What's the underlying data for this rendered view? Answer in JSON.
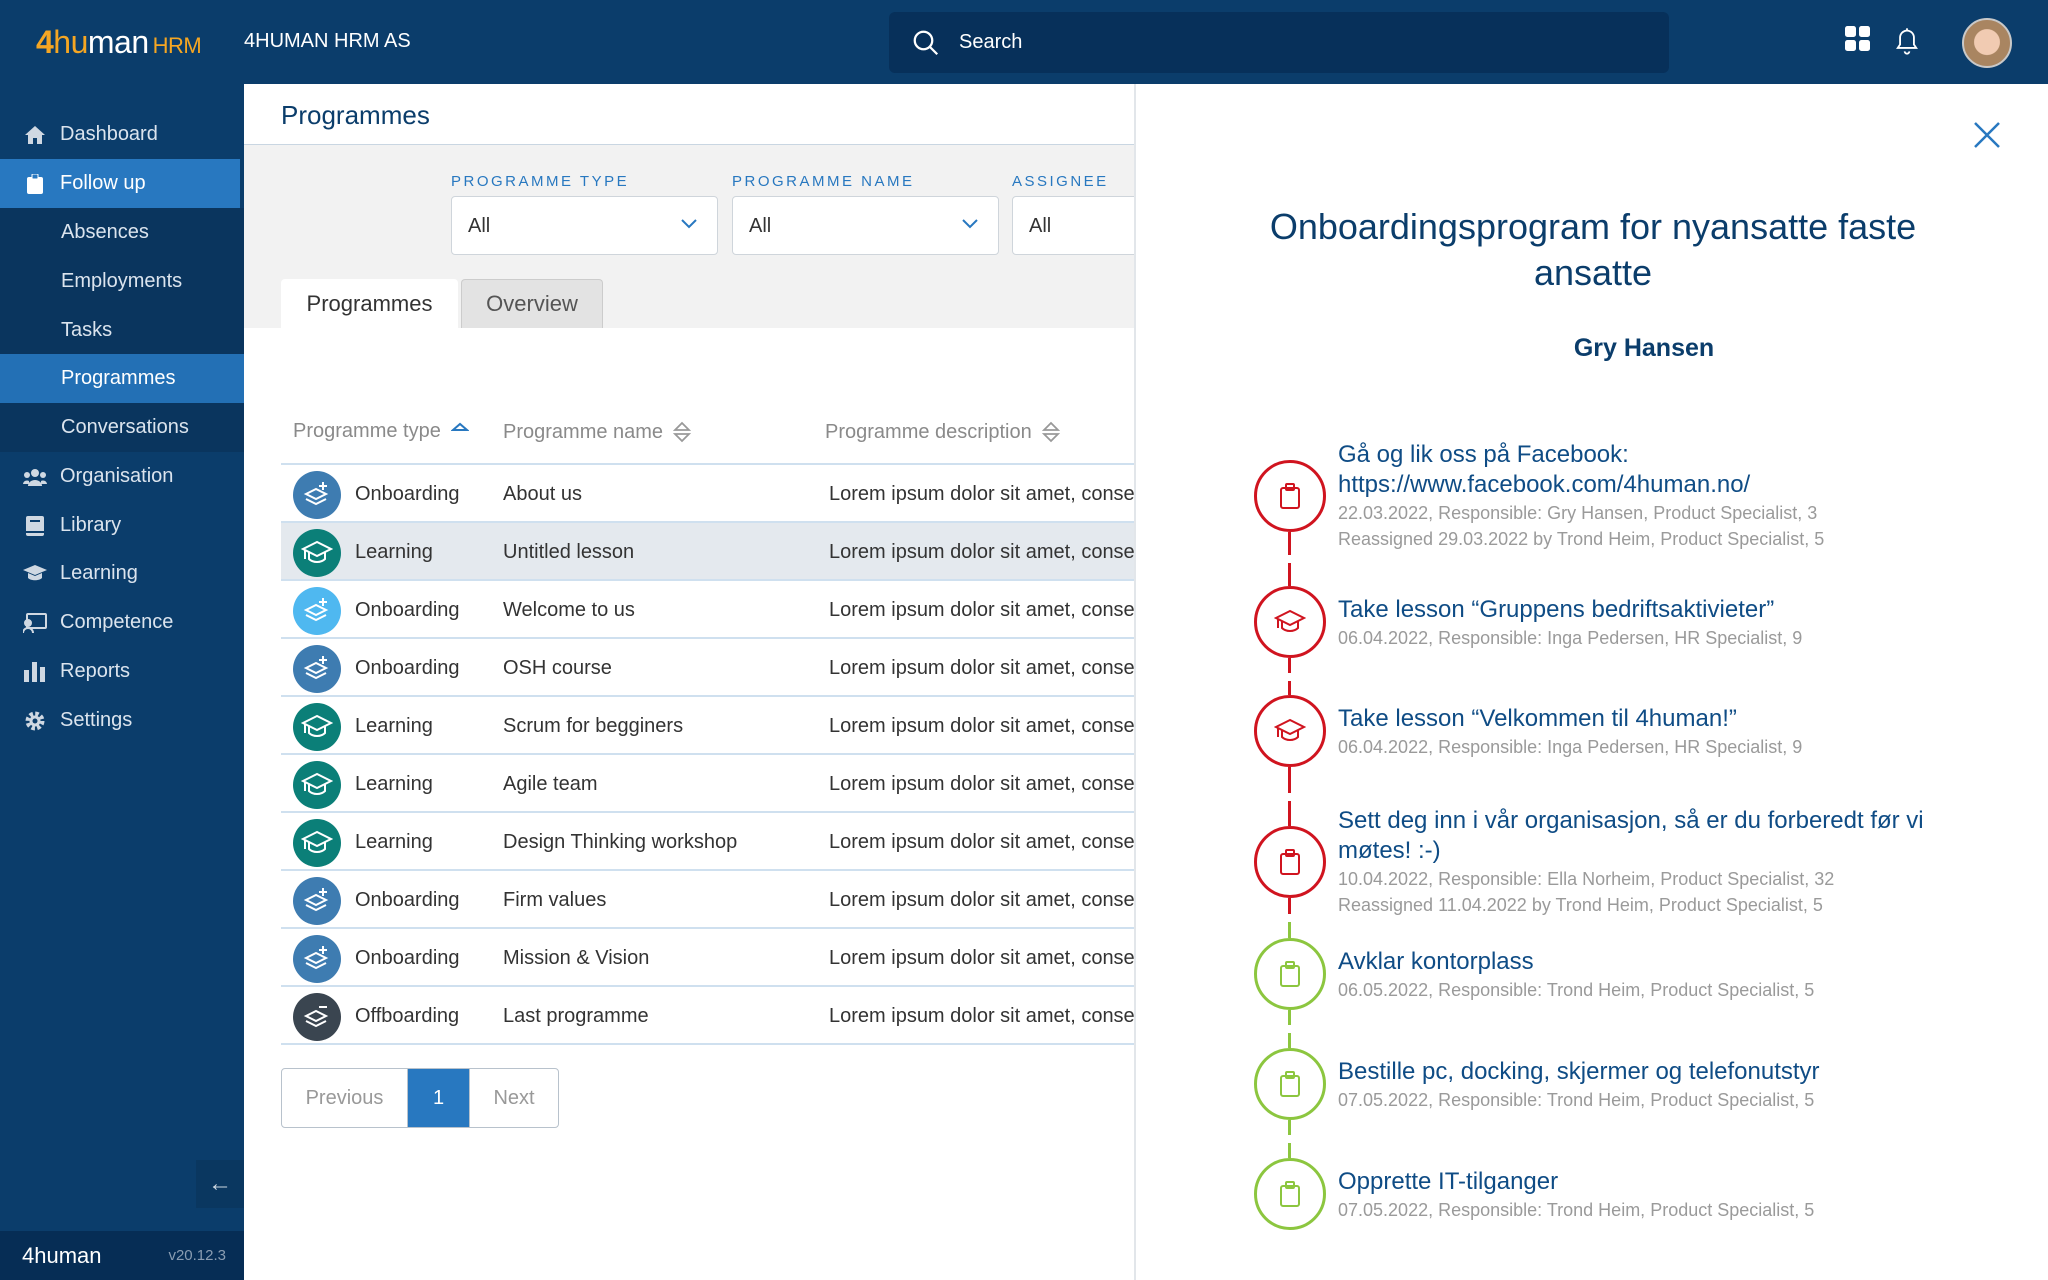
{
  "header": {
    "logo": "4human",
    "logo_suffix": "HRM",
    "company": "4HUMAN HRM AS",
    "search_placeholder": "Search"
  },
  "sidebar": {
    "items": [
      {
        "label": "Dashboard",
        "icon": "home-icon"
      },
      {
        "label": "Follow up",
        "icon": "clipboard-icon"
      },
      {
        "label": "Absences"
      },
      {
        "label": "Employments"
      },
      {
        "label": "Tasks"
      },
      {
        "label": "Programmes"
      },
      {
        "label": "Conversations"
      },
      {
        "label": "Organisation",
        "icon": "users-icon"
      },
      {
        "label": "Library",
        "icon": "book-icon"
      },
      {
        "label": "Learning",
        "icon": "graduation-cap-icon"
      },
      {
        "label": "Competence",
        "icon": "competence-icon"
      },
      {
        "label": "Reports",
        "icon": "bar-chart-icon"
      },
      {
        "label": "Settings",
        "icon": "gear-icon"
      }
    ],
    "footer_logo": "4human",
    "version": "v20.12.3"
  },
  "main": {
    "title": "Programmes",
    "filters": [
      {
        "label": "PROGRAMME TYPE",
        "value": "All"
      },
      {
        "label": "PROGRAMME NAME",
        "value": "All"
      },
      {
        "label": "ASSIGNEE",
        "value": "All"
      }
    ],
    "tabs": [
      "Programmes",
      "Overview"
    ],
    "columns": [
      "Programme type",
      "Programme name",
      "Programme description"
    ],
    "rows": [
      {
        "type": "Onboarding",
        "name": "About us",
        "desc": "Lorem ipsum dolor sit amet, consectetur",
        "color": "#3e7cb1"
      },
      {
        "type": "Learning",
        "name": "Untitled lesson",
        "desc": "Lorem ipsum dolor sit amet, consectetur",
        "color": "#0b7f78"
      },
      {
        "type": "Onboarding",
        "name": "Welcome to us",
        "desc": "Lorem ipsum dolor sit amet, consectetur",
        "color": "#4fb8f0"
      },
      {
        "type": "Onboarding",
        "name": "OSH course",
        "desc": "Lorem ipsum dolor sit amet, consectetur",
        "color": "#3e7cb1"
      },
      {
        "type": "Learning",
        "name": "Scrum for begginers",
        "desc": "Lorem ipsum dolor sit amet, consectetur",
        "color": "#0b7f78"
      },
      {
        "type": "Learning",
        "name": "Agile team",
        "desc": "Lorem ipsum dolor sit amet, consectetur",
        "color": "#0b7f78"
      },
      {
        "type": "Learning",
        "name": "Design Thinking workshop",
        "desc": "Lorem ipsum dolor sit amet, consectetur",
        "color": "#0b7f78"
      },
      {
        "type": "Onboarding",
        "name": "Firm values",
        "desc": "Lorem ipsum dolor sit amet, consectetur",
        "color": "#3e7cb1"
      },
      {
        "type": "Onboarding",
        "name": "Mission & Vision",
        "desc": "Lorem ipsum dolor sit amet, consectetur",
        "color": "#3e7cb1"
      },
      {
        "type": "Offboarding",
        "name": "Last programme",
        "desc": "Lorem ipsum dolor sit amet, consectetur",
        "color": "#3a4550"
      }
    ],
    "pagination": {
      "previous": "Previous",
      "current": "1",
      "next": "Next"
    }
  },
  "detail": {
    "title": "Onboardingsprogram for nyansatte faste ansatte",
    "person": "Gry Hansen",
    "colors": {
      "overdue": "#d0141f",
      "pending": "#8cc63f"
    },
    "tasks": [
      {
        "title": "Gå og lik oss på Facebook: https://www.facebook.com/4human.no/",
        "meta": "22.03.2022, Responsible: Gry Hansen, Product Specialist, 3",
        "meta2": "Reassigned 29.03.2022 by Trond Heim, Product Specialist, 5",
        "icon": "clipboard-icon",
        "status": "overdue"
      },
      {
        "title": "Take lesson “Gruppens bedriftsaktivieter”",
        "meta": "06.04.2022, Responsible: Inga Pedersen, HR Specialist, 9",
        "icon": "graduation-cap-icon",
        "status": "overdue"
      },
      {
        "title": "Take lesson “Velkommen til 4human!”",
        "meta": "06.04.2022, Responsible: Inga Pedersen, HR Specialist, 9",
        "icon": "graduation-cap-icon",
        "status": "overdue"
      },
      {
        "title": "Sett deg inn i vår organisasjon, så er du forberedt før vi møtes! :-)",
        "meta": "10.04.2022, Responsible: Ella Norheim, Product Specialist, 32",
        "meta2": "Reassigned 11.04.2022 by Trond Heim, Product Specialist, 5",
        "icon": "clipboard-icon",
        "status": "overdue"
      },
      {
        "title": "Avklar kontorplass",
        "meta": "06.05.2022, Responsible: Trond Heim, Product Specialist, 5",
        "icon": "clipboard-icon",
        "status": "pending"
      },
      {
        "title": "Bestille pc, docking, skjermer og telefonutstyr",
        "meta": "07.05.2022, Responsible: Trond Heim, Product Specialist, 5",
        "icon": "clipboard-icon",
        "status": "pending"
      },
      {
        "title": "Opprette IT-tilganger",
        "meta": "07.05.2022, Responsible: Trond Heim, Product Specialist, 5",
        "icon": "clipboard-icon",
        "status": "pending"
      }
    ]
  }
}
